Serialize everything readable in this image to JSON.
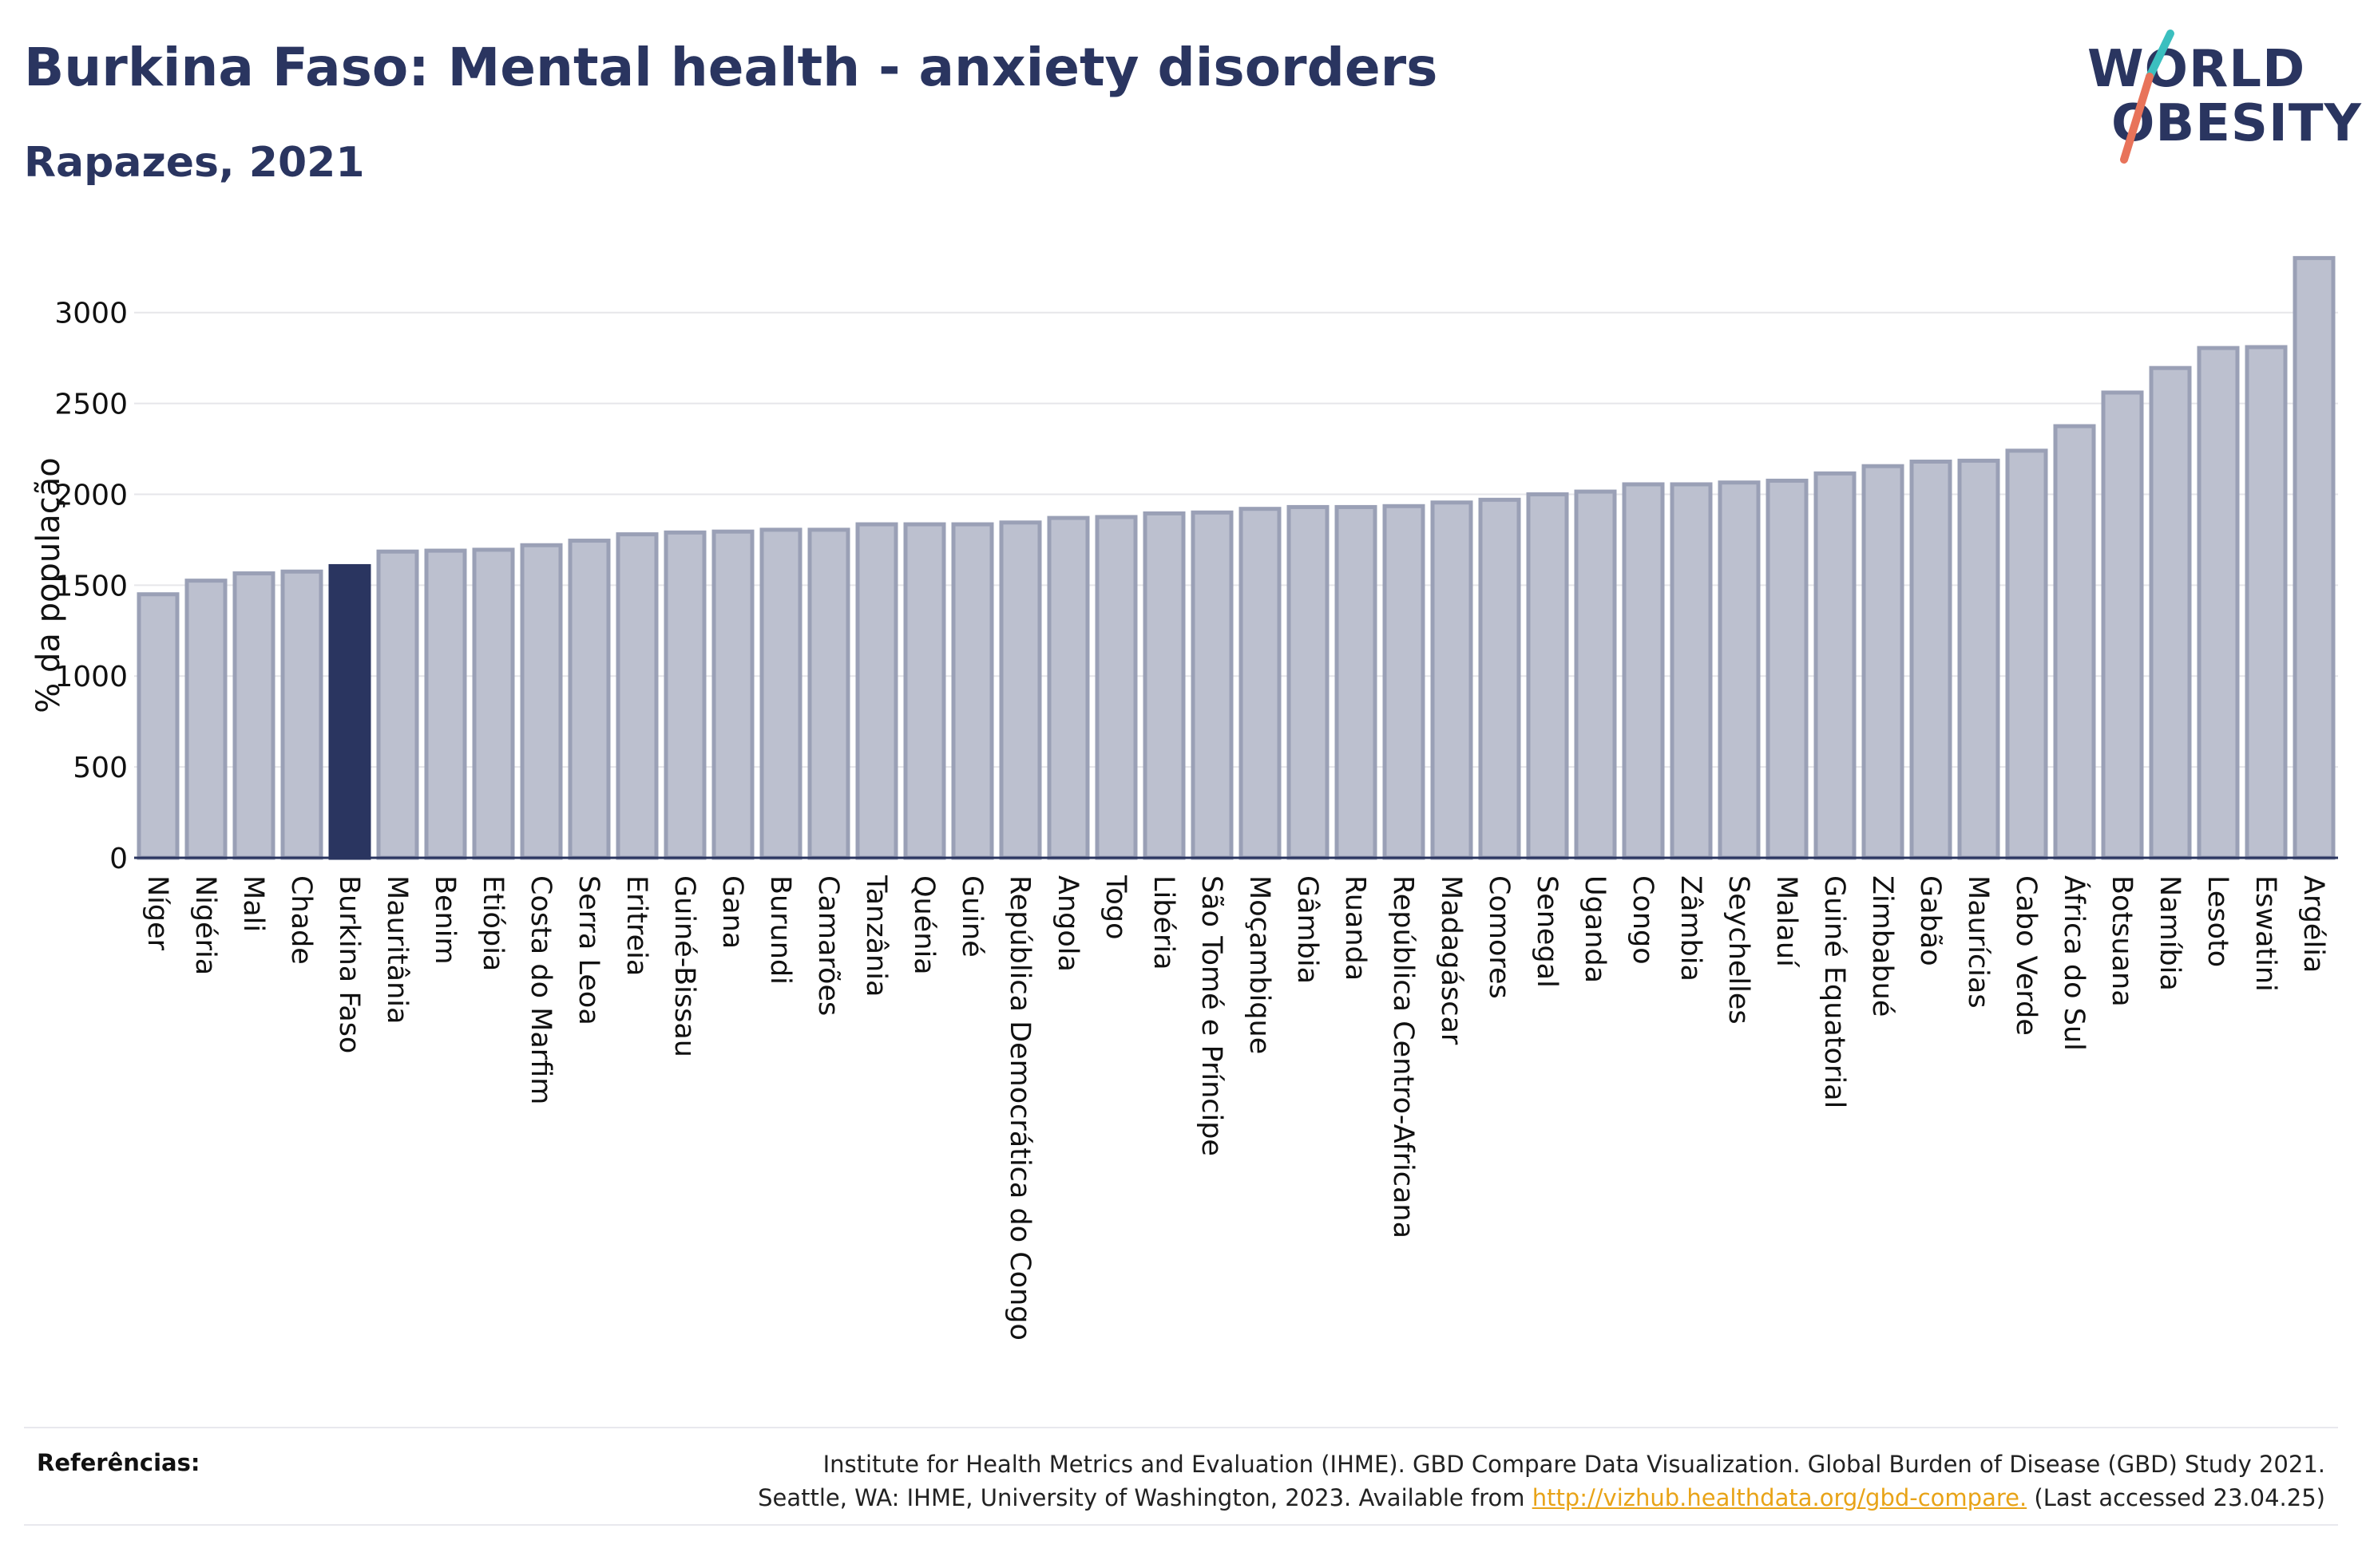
{
  "header": {
    "title": "Burkina Faso: Mental health - anxiety disorders",
    "subtitle": "Rapazes, 2021"
  },
  "logo": {
    "line1": "WORLD",
    "line2": "OBESITY",
    "slash_colors": [
      "#3bbfbf",
      "#e8735a"
    ]
  },
  "colors": {
    "bar": "#bcc0cf",
    "bar_edge": "#9aa0b6",
    "highlight": "#2a3560",
    "grid": "#e6e6ea",
    "text": "#2a3560"
  },
  "chart_data": {
    "type": "bar",
    "title": "Burkina Faso: Mental health - anxiety disorders",
    "subtitle": "Rapazes, 2021",
    "ylabel": "% da população",
    "ylim": [
      0,
      3350
    ],
    "yticks": [
      0,
      500,
      1000,
      1500,
      2000,
      2500,
      3000
    ],
    "grid": true,
    "highlight": "Burkina Faso",
    "categories": [
      "Níger",
      "Nigéria",
      "Mali",
      "Chade",
      "Burkina Faso",
      "Mauritânia",
      "Benim",
      "Etiópia",
      "Costa do Marfim",
      "Serra Leoa",
      "Eritreia",
      "Guiné-Bissau",
      "Gana",
      "Burundi",
      "Camarões",
      "Tanzânia",
      "Quénia",
      "Guiné",
      "República Democrática do Congo",
      "Angola",
      "Togo",
      "Libéria",
      "São Tomé e Príncipe",
      "Moçambique",
      "Gâmbia",
      "Ruanda",
      "República Centro-Africana",
      "Madagáscar",
      "Comores",
      "Senegal",
      "Uganda",
      "Congo",
      "Zâmbia",
      "Seychelles",
      "Malauí",
      "Guiné Equatorial",
      "Zimbabué",
      "Gabão",
      "Maurícias",
      "Cabo Verde",
      "África do Sul",
      "Botsuana",
      "Namíbia",
      "Lesoto",
      "Eswatini",
      "Argélia"
    ],
    "values": [
      1450,
      1525,
      1565,
      1575,
      1605,
      1685,
      1690,
      1695,
      1720,
      1745,
      1780,
      1790,
      1795,
      1805,
      1805,
      1835,
      1835,
      1835,
      1845,
      1870,
      1875,
      1895,
      1900,
      1920,
      1930,
      1930,
      1935,
      1955,
      1970,
      2000,
      2015,
      2055,
      2055,
      2065,
      2075,
      2115,
      2155,
      2180,
      2185,
      2240,
      2375,
      2560,
      2695,
      2805,
      2810,
      3300
    ]
  },
  "references": {
    "label": "Referências:",
    "line1": "Institute for Health Metrics and Evaluation (IHME). GBD Compare Data Visualization. Global Burden of Disease (GBD) Study 2021.",
    "line2_prefix": "Seattle, WA: IHME, University of Washington, 2023. Available from ",
    "link": "http://vizhub.healthdata.org/gbd-compare.",
    "line2_suffix": " (Last accessed 23.04.25)"
  }
}
